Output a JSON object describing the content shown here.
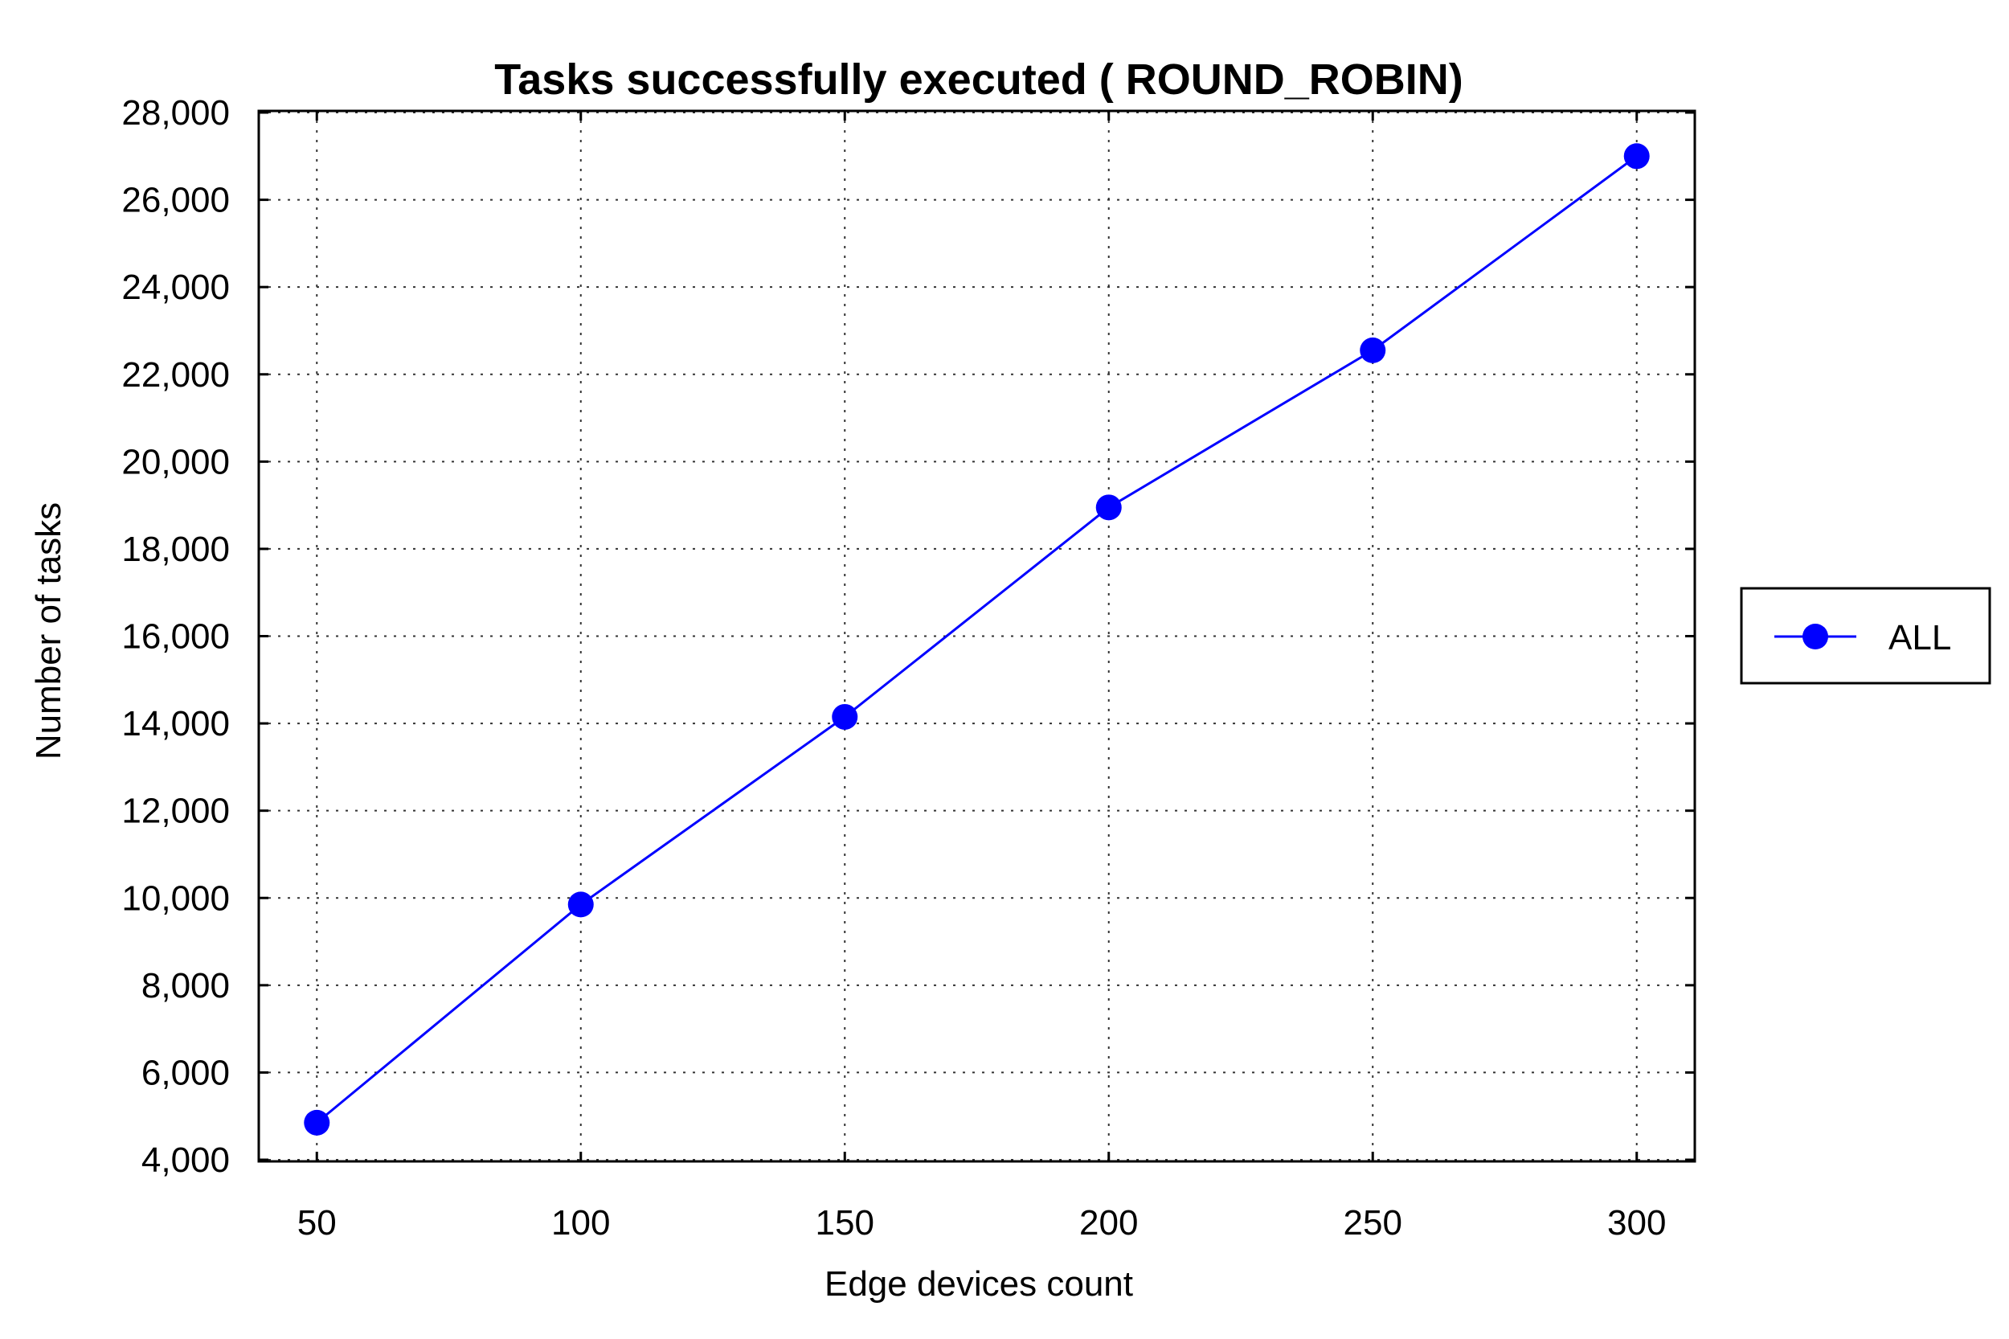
{
  "chart_data": {
    "type": "line",
    "title": "Tasks successfully executed ( ROUND_ROBIN)",
    "xlabel": "Edge devices count",
    "ylabel": "Number of tasks",
    "x": [
      50,
      100,
      150,
      200,
      250,
      300
    ],
    "x_ticks": [
      "50",
      "100",
      "150",
      "200",
      "250",
      "300"
    ],
    "xlim": [
      39,
      311
    ],
    "ylim": [
      4000,
      28000
    ],
    "y_ticks": [
      "4,000",
      "6,000",
      "8,000",
      "10,000",
      "12,000",
      "14,000",
      "16,000",
      "18,000",
      "20,000",
      "22,000",
      "24,000",
      "26,000",
      "28,000"
    ],
    "grid": true,
    "legend_position": "right",
    "series": [
      {
        "name": "ALL",
        "values": [
          4850,
          9850,
          14150,
          18950,
          22550,
          27000
        ],
        "color": "#0000ff",
        "marker": "circle"
      }
    ]
  }
}
